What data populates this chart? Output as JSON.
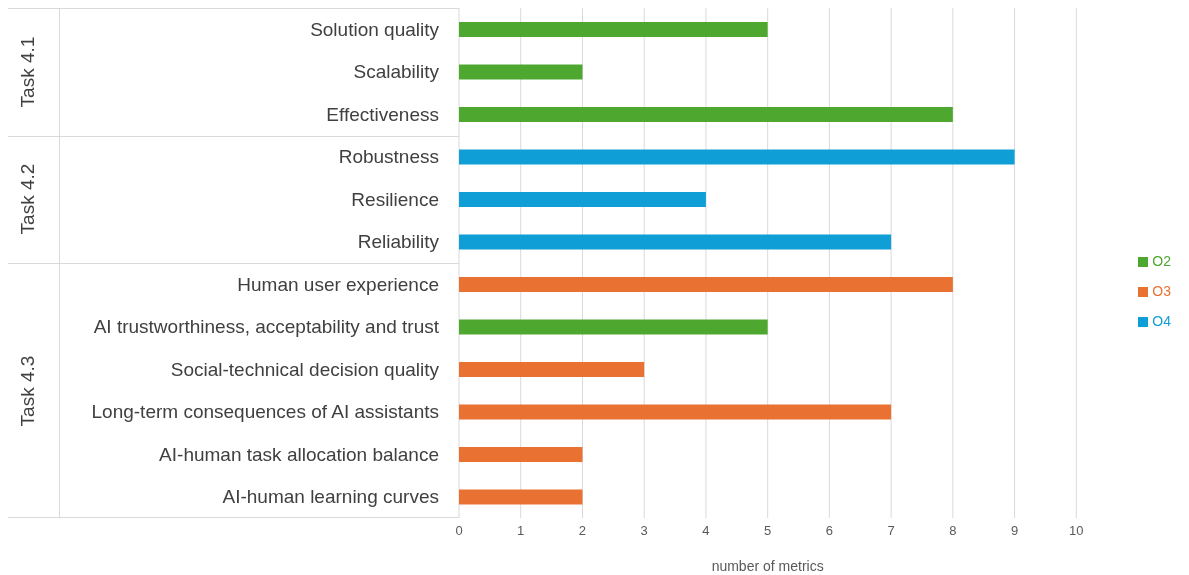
{
  "chart_data": {
    "type": "bar",
    "orientation": "horizontal",
    "stacked": true,
    "categories": [
      "Solution quality",
      "Scalability",
      "Effectiveness",
      "Robustness",
      "Resilience",
      "Reliability",
      "Human user experience",
      "AI trustworthiness, acceptability and trust",
      "Social-technical decision quality",
      "Long-term consequences of AI assistants",
      "AI-human task allocation balance",
      "AI-human learning curves"
    ],
    "series": [
      {
        "name": "O2",
        "color": "#4ea72e",
        "values": [
          5,
          2,
          8,
          null,
          null,
          null,
          null,
          5,
          null,
          null,
          null,
          null
        ]
      },
      {
        "name": "O3",
        "color": "#e97132",
        "values": [
          null,
          null,
          null,
          null,
          null,
          null,
          8,
          null,
          3,
          7,
          2,
          2
        ]
      },
      {
        "name": "O4",
        "color": "#0f9ed5",
        "values": [
          null,
          null,
          null,
          9,
          4,
          7,
          null,
          null,
          null,
          null,
          null,
          null
        ]
      }
    ],
    "xlim": [
      0,
      10
    ],
    "xticks": [
      0,
      1,
      2,
      3,
      4,
      5,
      6,
      7,
      8,
      9,
      10
    ],
    "xlabel": "number of metrics",
    "grid": "x",
    "legend": "right",
    "annotations": [
      "Task 4.1",
      "Task 4.2",
      "Task 4.3"
    ]
  }
}
